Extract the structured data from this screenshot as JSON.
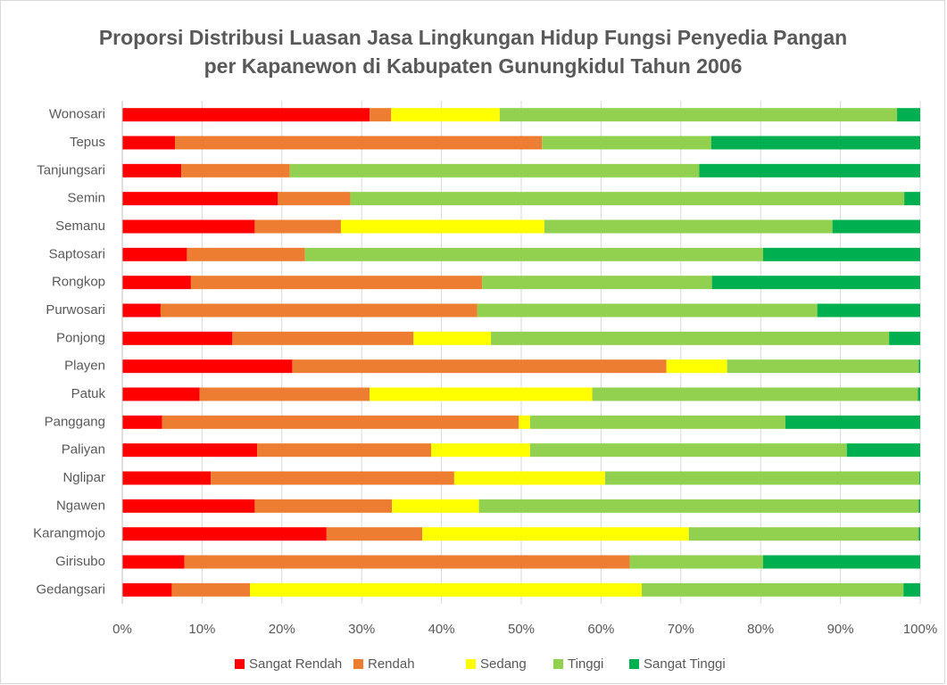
{
  "chart_data": {
    "type": "stacked_barh",
    "title": [
      "Proporsi Distribusi Luasan Jasa Lingkungan Hidup Fungsi Penyedia Pangan",
      "per Kapanewon di Kabupaten Gunungkidul Tahun 2006"
    ],
    "categories": [
      "Wonosari",
      "Tepus",
      "Tanjungsari",
      "Semin",
      "Semanu",
      "Saptosari",
      "Rongkop",
      "Purwosari",
      "Ponjong",
      "Playen",
      "Patuk",
      "Panggang",
      "Paliyan",
      "Nglipar",
      "Ngawen",
      "Karangmojo",
      "Girisubo",
      "Gedangsari"
    ],
    "series": [
      {
        "name": "Sangat Rendah",
        "color": "#ff0000",
        "values": [
          31.0,
          6.6,
          7.4,
          19.5,
          16.6,
          8.1,
          8.6,
          4.8,
          13.8,
          21.3,
          9.7,
          5.0,
          16.9,
          11.1,
          16.6,
          25.6,
          7.8,
          6.2
        ]
      },
      {
        "name": "Rendah",
        "color": "#ed7d31",
        "values": [
          2.7,
          46.0,
          13.6,
          9.1,
          10.8,
          14.8,
          36.5,
          39.7,
          22.7,
          46.9,
          21.3,
          44.7,
          21.8,
          30.5,
          17.2,
          12.0,
          55.8,
          9.8
        ]
      },
      {
        "name": "Sedang",
        "color": "#ffff00",
        "values": [
          13.6,
          0,
          0,
          0,
          25.5,
          0,
          0,
          0,
          9.7,
          7.6,
          27.9,
          1.4,
          12.4,
          18.9,
          10.9,
          33.4,
          0,
          49.1
        ]
      },
      {
        "name": "Tinggi",
        "color": "#92d050",
        "values": [
          49.8,
          21.2,
          51.3,
          69.4,
          36.1,
          57.4,
          28.8,
          42.6,
          49.9,
          24.0,
          40.8,
          32.0,
          39.7,
          39.4,
          55.1,
          28.8,
          16.7,
          32.8
        ]
      },
      {
        "name": "Sangat Tinggi",
        "color": "#00b050",
        "values": [
          2.9,
          26.2,
          27.7,
          2.0,
          11.0,
          19.7,
          26.1,
          12.9,
          3.9,
          0.2,
          0.3,
          16.9,
          9.2,
          0.1,
          0.2,
          0.2,
          19.7,
          2.1
        ]
      }
    ],
    "xlim": [
      0,
      100
    ],
    "xticks": [
      {
        "value": 0,
        "label": "0%"
      },
      {
        "value": 10,
        "label": "10%"
      },
      {
        "value": 20,
        "label": "20%"
      },
      {
        "value": 30,
        "label": "30%"
      },
      {
        "value": 40,
        "label": "40%"
      },
      {
        "value": 50,
        "label": "50%"
      },
      {
        "value": 60,
        "label": "60%"
      },
      {
        "value": 70,
        "label": "70%"
      },
      {
        "value": 80,
        "label": "80%"
      },
      {
        "value": 90,
        "label": "90%"
      },
      {
        "value": 100,
        "label": "100%"
      }
    ],
    "grid": true,
    "legend": "bottom"
  }
}
